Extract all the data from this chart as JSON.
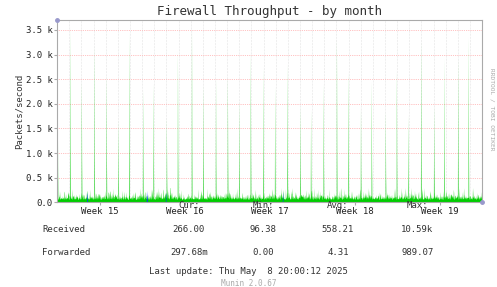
{
  "title": "Firewall Throughput - by month",
  "ylabel": "Packets/second",
  "background_color": "#ffffff",
  "plot_bg_color": "#ffffff",
  "grid_color_h": "#ff8888",
  "grid_color_v": "#cccccc",
  "x_tick_labels": [
    "Week 15",
    "Week 16",
    "Week 17",
    "Week 18",
    "Week 19"
  ],
  "ytick_values": [
    0,
    500,
    1000,
    1500,
    2000,
    2500,
    3000,
    3500
  ],
  "ymax": 3700,
  "received_color": "#00cc00",
  "forwarded_color": "#0033ff",
  "legend_received": "Received",
  "legend_forwarded": "Forwarded",
  "cur_received": "266.00",
  "min_received": "96.38",
  "avg_received": "558.21",
  "max_received": "10.59k",
  "cur_forwarded": "297.68m",
  "min_forwarded": "0.00",
  "avg_forwarded": "4.31",
  "max_forwarded": "989.07",
  "last_update": "Last update: Thu May  8 20:00:12 2025",
  "munin_version": "Munin 2.0.67",
  "rrdtool_label": "RRDTOOL / TOBI OETIKER",
  "num_points": 2000,
  "seed": 42
}
